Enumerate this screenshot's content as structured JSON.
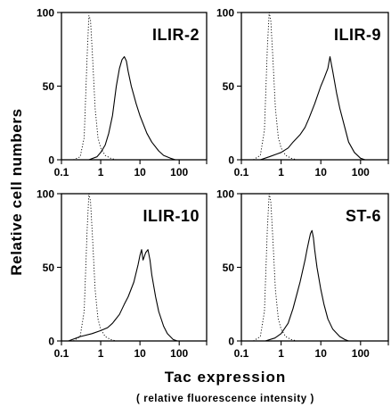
{
  "figure": {
    "ylabel": "Relative cell numbers",
    "xlabel": "Tac expression",
    "xlabel_sub": "( relative fluorescence intensity )"
  },
  "chart_data": [
    {
      "type": "line",
      "title": "ILIR-2",
      "xscale": "log",
      "xlim": [
        0.1,
        500
      ],
      "ylim": [
        0,
        100
      ],
      "x_ticks": [
        "0.1",
        "1",
        "10",
        "100"
      ],
      "y_ticks": [
        "0",
        "50",
        "100"
      ],
      "series": [
        {
          "style": "dotted",
          "points": [
            [
              0.2,
              0
            ],
            [
              0.3,
              2
            ],
            [
              0.38,
              15
            ],
            [
              0.45,
              70
            ],
            [
              0.5,
              98
            ],
            [
              0.55,
              95
            ],
            [
              0.62,
              70
            ],
            [
              0.72,
              35
            ],
            [
              0.85,
              15
            ],
            [
              1,
              8
            ],
            [
              1.3,
              3
            ],
            [
              1.8,
              1
            ],
            [
              2.5,
              0
            ]
          ]
        },
        {
          "style": "solid",
          "points": [
            [
              0.5,
              0
            ],
            [
              0.8,
              2
            ],
            [
              1,
              5
            ],
            [
              1.3,
              10
            ],
            [
              1.6,
              18
            ],
            [
              2,
              30
            ],
            [
              2.5,
              50
            ],
            [
              3,
              62
            ],
            [
              3.5,
              68
            ],
            [
              4,
              70
            ],
            [
              4.5,
              67
            ],
            [
              5,
              60
            ],
            [
              6,
              50
            ],
            [
              8,
              38
            ],
            [
              10,
              30
            ],
            [
              15,
              18
            ],
            [
              20,
              12
            ],
            [
              30,
              6
            ],
            [
              40,
              3
            ],
            [
              60,
              1
            ],
            [
              80,
              0
            ]
          ]
        }
      ]
    },
    {
      "type": "line",
      "title": "ILIR-9",
      "xscale": "log",
      "xlim": [
        0.1,
        500
      ],
      "ylim": [
        0,
        100
      ],
      "x_ticks": [
        "0.1",
        "1",
        "10",
        "100"
      ],
      "y_ticks": [
        "0",
        "50",
        "100"
      ],
      "series": [
        {
          "style": "dotted",
          "points": [
            [
              0.2,
              0
            ],
            [
              0.3,
              3
            ],
            [
              0.38,
              20
            ],
            [
              0.45,
              75
            ],
            [
              0.5,
              100
            ],
            [
              0.55,
              95
            ],
            [
              0.62,
              70
            ],
            [
              0.72,
              35
            ],
            [
              0.85,
              15
            ],
            [
              1,
              8
            ],
            [
              1.3,
              3
            ],
            [
              1.8,
              1
            ],
            [
              2.5,
              0
            ]
          ]
        },
        {
          "style": "solid",
          "points": [
            [
              0.3,
              0
            ],
            [
              0.5,
              2
            ],
            [
              0.8,
              4
            ],
            [
              1,
              5
            ],
            [
              1.5,
              8
            ],
            [
              2,
              12
            ],
            [
              3,
              17
            ],
            [
              4,
              22
            ],
            [
              5,
              28
            ],
            [
              7,
              38
            ],
            [
              10,
              50
            ],
            [
              12,
              55
            ],
            [
              15,
              62
            ],
            [
              17,
              70
            ],
            [
              20,
              60
            ],
            [
              25,
              45
            ],
            [
              30,
              35
            ],
            [
              40,
              22
            ],
            [
              50,
              12
            ],
            [
              70,
              5
            ],
            [
              100,
              1
            ],
            [
              130,
              0
            ]
          ]
        }
      ]
    },
    {
      "type": "line",
      "title": "ILIR-10",
      "xscale": "log",
      "xlim": [
        0.1,
        500
      ],
      "ylim": [
        0,
        100
      ],
      "x_ticks": [
        "0.1",
        "1",
        "10",
        "100"
      ],
      "y_ticks": [
        "0",
        "50",
        "100"
      ],
      "series": [
        {
          "style": "dotted",
          "points": [
            [
              0.2,
              0
            ],
            [
              0.3,
              3
            ],
            [
              0.38,
              20
            ],
            [
              0.45,
              75
            ],
            [
              0.5,
              100
            ],
            [
              0.55,
              95
            ],
            [
              0.62,
              70
            ],
            [
              0.72,
              35
            ],
            [
              0.85,
              15
            ],
            [
              1,
              8
            ],
            [
              1.3,
              3
            ],
            [
              1.8,
              1
            ],
            [
              2.5,
              0
            ]
          ]
        },
        {
          "style": "solid",
          "points": [
            [
              0.15,
              0
            ],
            [
              0.3,
              3
            ],
            [
              0.6,
              5
            ],
            [
              1,
              7
            ],
            [
              1.5,
              9
            ],
            [
              2,
              12
            ],
            [
              3,
              18
            ],
            [
              4,
              25
            ],
            [
              5,
              30
            ],
            [
              7,
              40
            ],
            [
              9,
              52
            ],
            [
              10,
              58
            ],
            [
              11,
              62
            ],
            [
              12,
              55
            ],
            [
              14,
              60
            ],
            [
              16,
              62
            ],
            [
              18,
              55
            ],
            [
              20,
              45
            ],
            [
              25,
              30
            ],
            [
              30,
              20
            ],
            [
              40,
              10
            ],
            [
              50,
              5
            ],
            [
              70,
              1
            ],
            [
              90,
              0
            ]
          ]
        }
      ]
    },
    {
      "type": "line",
      "title": "ST-6",
      "xscale": "log",
      "xlim": [
        0.1,
        500
      ],
      "ylim": [
        0,
        100
      ],
      "x_ticks": [
        "0.1",
        "1",
        "10",
        "100"
      ],
      "y_ticks": [
        "0",
        "50",
        "100"
      ],
      "series": [
        {
          "style": "dotted",
          "points": [
            [
              0.2,
              0
            ],
            [
              0.3,
              3
            ],
            [
              0.38,
              20
            ],
            [
              0.45,
              75
            ],
            [
              0.5,
              100
            ],
            [
              0.55,
              95
            ],
            [
              0.62,
              70
            ],
            [
              0.72,
              35
            ],
            [
              0.85,
              15
            ],
            [
              1,
              8
            ],
            [
              1.3,
              3
            ],
            [
              1.8,
              1
            ],
            [
              2.5,
              0
            ]
          ]
        },
        {
          "style": "solid",
          "points": [
            [
              0.4,
              0
            ],
            [
              0.7,
              2
            ],
            [
              1,
              5
            ],
            [
              1.5,
              12
            ],
            [
              2,
              22
            ],
            [
              2.5,
              32
            ],
            [
              3,
              40
            ],
            [
              3.5,
              48
            ],
            [
              4,
              55
            ],
            [
              4.5,
              62
            ],
            [
              5,
              68
            ],
            [
              5.5,
              73
            ],
            [
              6,
              75
            ],
            [
              6.5,
              70
            ],
            [
              7,
              62
            ],
            [
              8,
              50
            ],
            [
              10,
              35
            ],
            [
              12,
              25
            ],
            [
              15,
              15
            ],
            [
              20,
              8
            ],
            [
              30,
              3
            ],
            [
              40,
              1
            ],
            [
              50,
              0
            ]
          ]
        }
      ]
    }
  ]
}
